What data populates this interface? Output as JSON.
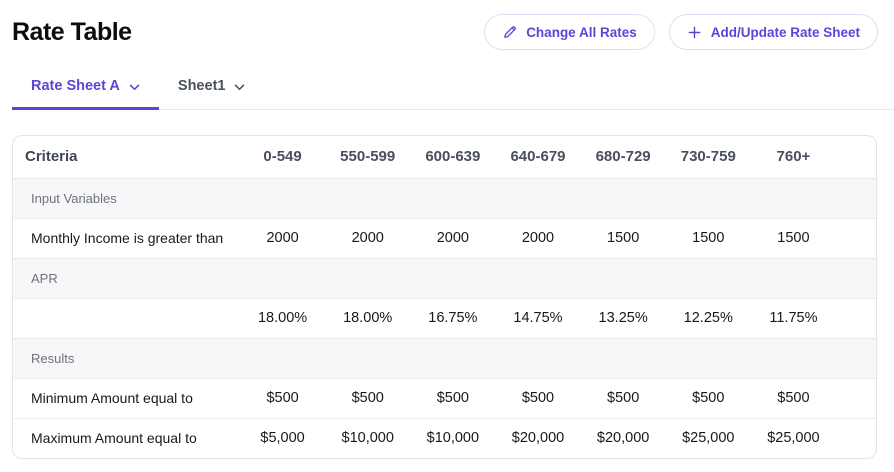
{
  "header": {
    "title": "Rate Table",
    "buttons": [
      {
        "label": "Change All Rates",
        "icon": "pencil-icon"
      },
      {
        "label": "Add/Update Rate Sheet",
        "icon": "plus-icon"
      }
    ]
  },
  "tabs": [
    {
      "label": "Rate Sheet A",
      "icon": "chevron-down-icon",
      "active": true
    },
    {
      "label": "Sheet1",
      "icon": "chevron-down-icon",
      "active": false
    }
  ],
  "table": {
    "criteria_header": "Criteria",
    "columns": [
      "0-549",
      "550-599",
      "600-639",
      "640-679",
      "680-729",
      "730-759",
      "760+"
    ],
    "rows": [
      {
        "type": "section",
        "label": "Input Variables"
      },
      {
        "type": "data",
        "label": "Monthly Income is greater than",
        "values": [
          "2000",
          "2000",
          "2000",
          "2000",
          "1500",
          "1500",
          "1500"
        ]
      },
      {
        "type": "section",
        "label": "APR"
      },
      {
        "type": "data",
        "label": "",
        "values": [
          "18.00%",
          "18.00%",
          "16.75%",
          "14.75%",
          "13.25%",
          "12.25%",
          "11.75%"
        ]
      },
      {
        "type": "section",
        "label": "Results"
      },
      {
        "type": "data",
        "label": "Minimum Amount equal to",
        "values": [
          "$500",
          "$500",
          "$500",
          "$500",
          "$500",
          "$500",
          "$500"
        ]
      },
      {
        "type": "data",
        "label": "Maximum Amount equal to",
        "values": [
          "$5,000",
          "$10,000",
          "$10,000",
          "$20,000",
          "$20,000",
          "$25,000",
          "$25,000"
        ]
      }
    ]
  },
  "colors": {
    "accent": "#5B45D8",
    "button_border": "#E2DEF4",
    "table_border": "#E3E3E8",
    "section_background": "#F7F7F9",
    "row_divider": "#ECECF0",
    "column_header_text": "#494F5E",
    "muted_text": "#6C7280"
  }
}
